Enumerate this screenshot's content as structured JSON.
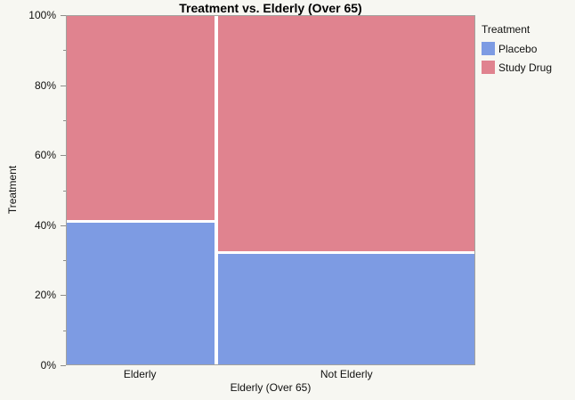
{
  "title": "Treatment vs. Elderly (Over 65)",
  "y_axis": {
    "label": "Treatment"
  },
  "x_axis": {
    "label": "Elderly (Over 65)"
  },
  "legend": {
    "title": "Treatment",
    "items": [
      {
        "label": "Placebo",
        "color": "#7d9be3"
      },
      {
        "label": "Study Drug",
        "color": "#e0838f"
      }
    ]
  },
  "colors": {
    "background": "#f7f7f2",
    "frame": "#a2a29e",
    "tick": "#8d8d8a",
    "cell_gap": "#ffffff",
    "placebo": "#7d9be3",
    "study_drug": "#e0838f"
  },
  "chart_data": {
    "type": "mosaic",
    "title": "Treatment vs. Elderly (Over 65)",
    "xlabel": "Elderly (Over 65)",
    "ylabel": "Treatment",
    "categories": [
      "Elderly",
      "Not Elderly"
    ],
    "category_widths_pct": [
      36.5,
      63.5
    ],
    "series": [
      {
        "name": "Placebo",
        "color": "#7d9be3",
        "values_pct": [
          41,
          32
        ]
      },
      {
        "name": "Study Drug",
        "color": "#e0838f",
        "values_pct": [
          59,
          68
        ]
      }
    ],
    "y_ticks_major_pct": [
      0,
      20,
      40,
      60,
      80,
      100
    ],
    "y_ticks_minor_pct": [
      10,
      30,
      50,
      70,
      90
    ],
    "y_tick_label_suffix": "%",
    "ylim": [
      0,
      100
    ],
    "grid": false,
    "legend_position": "right"
  }
}
